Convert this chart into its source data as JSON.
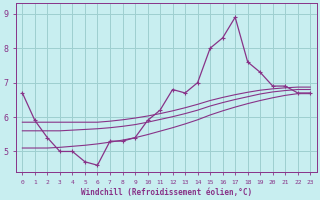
{
  "title": "",
  "xlabel": "Windchill (Refroidissement éolien,°C)",
  "ylabel": "",
  "bg_color": "#c8eef0",
  "grid_color": "#9ecfcf",
  "line_color": "#883388",
  "xlim": [
    -0.5,
    23.5
  ],
  "ylim": [
    4.4,
    9.3
  ],
  "yticks": [
    5,
    6,
    7,
    8,
    9
  ],
  "xticks": [
    0,
    1,
    2,
    3,
    4,
    5,
    6,
    7,
    8,
    9,
    10,
    11,
    12,
    13,
    14,
    15,
    16,
    17,
    18,
    19,
    20,
    21,
    22,
    23
  ],
  "line1_x": [
    0,
    1,
    2,
    3,
    4,
    5,
    6,
    7,
    8,
    9,
    10,
    11,
    12,
    13,
    14,
    15,
    16,
    17,
    18,
    19,
    20,
    21,
    22,
    23
  ],
  "line1_y": [
    6.7,
    5.9,
    5.4,
    5.0,
    5.0,
    4.7,
    4.6,
    5.3,
    5.3,
    5.4,
    5.9,
    6.2,
    6.8,
    6.7,
    7.0,
    8.0,
    8.3,
    8.9,
    7.6,
    7.3,
    6.9,
    6.9,
    6.7,
    6.7
  ],
  "line2_x": [
    0,
    1,
    2,
    3,
    4,
    5,
    6,
    7,
    8,
    9,
    10,
    11,
    12,
    13,
    14,
    15,
    16,
    17,
    18,
    19,
    20,
    21,
    22,
    23
  ],
  "line2_y": [
    5.85,
    5.85,
    5.85,
    5.85,
    5.85,
    5.85,
    5.85,
    5.88,
    5.92,
    5.97,
    6.03,
    6.1,
    6.18,
    6.27,
    6.37,
    6.48,
    6.57,
    6.65,
    6.72,
    6.78,
    6.82,
    6.85,
    6.87,
    6.87
  ],
  "line3_x": [
    0,
    1,
    2,
    3,
    4,
    5,
    6,
    7,
    8,
    9,
    10,
    11,
    12,
    13,
    14,
    15,
    16,
    17,
    18,
    19,
    20,
    21,
    22,
    23
  ],
  "line3_y": [
    5.6,
    5.6,
    5.6,
    5.6,
    5.62,
    5.64,
    5.66,
    5.69,
    5.73,
    5.78,
    5.85,
    5.93,
    6.01,
    6.1,
    6.2,
    6.32,
    6.42,
    6.51,
    6.59,
    6.67,
    6.73,
    6.77,
    6.8,
    6.8
  ],
  "line4_x": [
    0,
    1,
    2,
    3,
    4,
    5,
    6,
    7,
    8,
    9,
    10,
    11,
    12,
    13,
    14,
    15,
    16,
    17,
    18,
    19,
    20,
    21,
    22,
    23
  ],
  "line4_y": [
    5.1,
    5.1,
    5.1,
    5.12,
    5.15,
    5.18,
    5.22,
    5.27,
    5.33,
    5.4,
    5.49,
    5.59,
    5.69,
    5.8,
    5.92,
    6.06,
    6.18,
    6.29,
    6.39,
    6.48,
    6.56,
    6.63,
    6.68,
    6.68
  ]
}
